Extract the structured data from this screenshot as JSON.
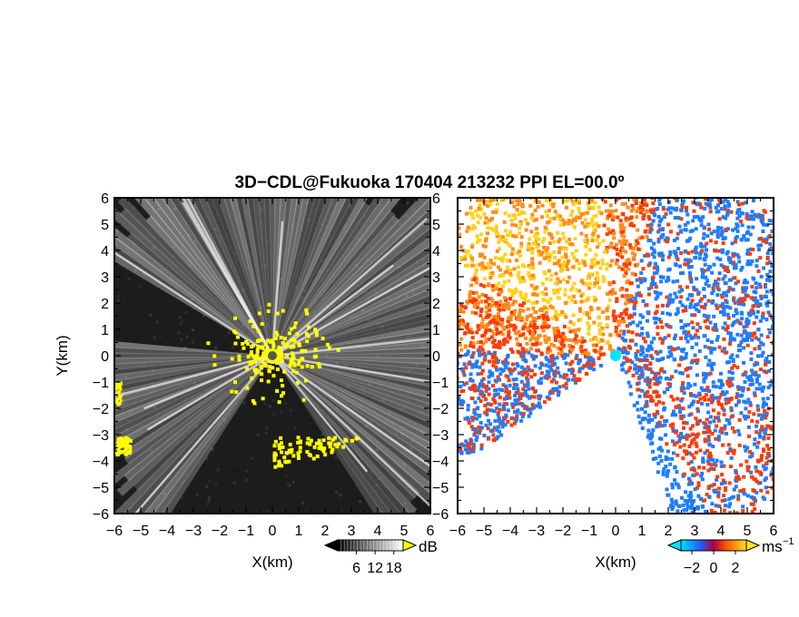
{
  "title": "3D−CDL@Fukuoka 170404 213232 PPI EL=00.0º",
  "chart_data": [
    {
      "type": "heatmap",
      "panel": "left",
      "description_kind": "radar PPI reflectivity (SNR)",
      "xlabel": "X(km)",
      "ylabel": "Y(km)",
      "xlim": [
        -6,
        6
      ],
      "ylim": [
        -6,
        6
      ],
      "xticks": [
        "−6",
        "−5",
        "−4",
        "−3",
        "−2",
        "−1",
        "0",
        "1",
        "2",
        "3",
        "4",
        "5",
        "6"
      ],
      "yticks": [
        "6",
        "5",
        "4",
        "3",
        "2",
        "1",
        "0",
        "−1",
        "−2",
        "−3",
        "−4",
        "−5",
        "−6"
      ],
      "colorbar": {
        "unit": "dB",
        "ticks": [
          "6",
          "12",
          "18"
        ],
        "range": [
          0,
          21
        ]
      }
    },
    {
      "type": "heatmap",
      "panel": "right",
      "description_kind": "radar PPI Doppler velocity",
      "xlabel": "X(km)",
      "xlim": [
        -6,
        6
      ],
      "ylim": [
        -6,
        6
      ],
      "xticks": [
        "−6",
        "−5",
        "−4",
        "−3",
        "−2",
        "−1",
        "0",
        "1",
        "2",
        "3",
        "4",
        "5",
        "6"
      ],
      "yticks": [
        "6",
        "5",
        "4",
        "3",
        "2",
        "1",
        "0",
        "−1",
        "−2",
        "−3",
        "−4",
        "−5",
        "−6"
      ],
      "colorbar": {
        "unit": "ms",
        "unit_exp": "−1",
        "ticks": [
          "−2",
          "0",
          "2"
        ],
        "range": [
          -3,
          3
        ]
      }
    }
  ],
  "colors": {
    "left_bg": "#1c1c1c",
    "left_ray": "#d8d8d8",
    "left_echo": "#ffff00",
    "right_orange": "#ff8c1a",
    "right_yellow": "#ffd21a",
    "right_red": "#ff3a00",
    "right_blue": "#1f7cff",
    "center_marker_left": "#555555",
    "center_marker_right": "#00e5ff"
  }
}
